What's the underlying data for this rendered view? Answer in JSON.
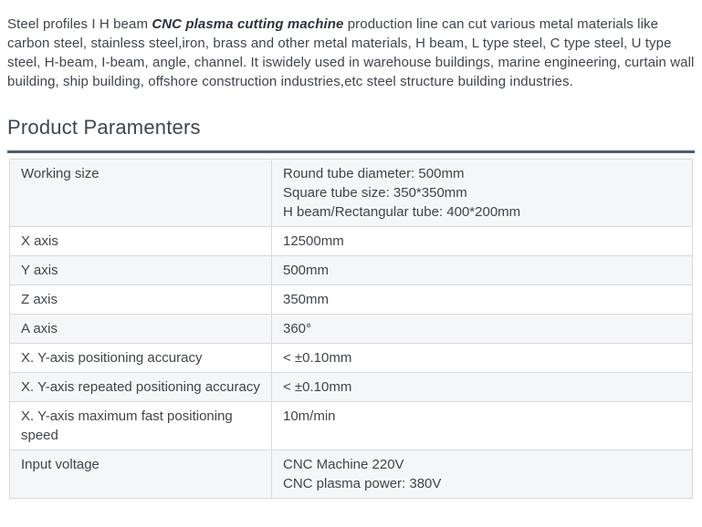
{
  "intro": {
    "text_before": "Steel profiles I H beam ",
    "bold_text": "CNC plasma cutting machine",
    "text_after": " production line can cut various metal materials like carbon steel, stainless steel,iron, brass and other metal materials, H beam, L type steel, C type steel, U type steel, H-beam, I-beam, angle, channel. It iswidely used in warehouse buildings, marine engineering, curtain wall building, ship building, offshore construction industries,etc steel structure building industries."
  },
  "section": {
    "title": "Product Paramenters"
  },
  "table": {
    "rows": [
      {
        "label": "Working size",
        "values": [
          "Round tube diameter: 500mm",
          "Square tube size: 350*350mm",
          "H beam/Rectangular tube: 400*200mm"
        ]
      },
      {
        "label": "X axis",
        "values": [
          "12500mm"
        ]
      },
      {
        "label": "Y axis",
        "values": [
          "500mm"
        ]
      },
      {
        "label": "Z axis",
        "values": [
          "350mm"
        ]
      },
      {
        "label": "A axis",
        "values": [
          "360°"
        ]
      },
      {
        "label": "X. Y-axis positioning accuracy",
        "values": [
          "< ±0.10mm"
        ]
      },
      {
        "label": "X. Y-axis repeated positioning accuracy",
        "values": [
          "< ±0.10mm"
        ]
      },
      {
        "label": "X. Y-axis maximum fast positioning speed",
        "values": [
          "10m/min"
        ]
      },
      {
        "label": "Input voltage",
        "values": [
          "CNC Machine 220V",
          "CNC plasma power: 380V"
        ]
      }
    ]
  },
  "colors": {
    "title_underline": "#4d5c70",
    "row_alt_bg": "#f5f6f8",
    "table_border": "#d9dadc",
    "body_text": "#3f454c",
    "heading_text": "#3d4653"
  }
}
